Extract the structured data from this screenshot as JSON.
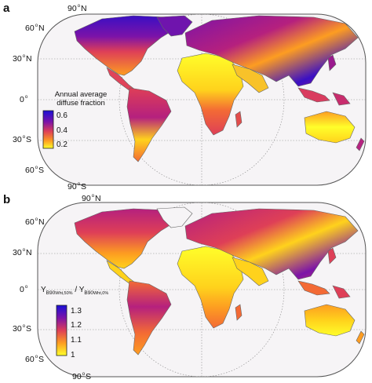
{
  "panels": [
    {
      "letter": "a",
      "latitude_labels": {
        "n90": {
          "value": "90",
          "hemi": "N"
        },
        "n60": {
          "value": "60",
          "hemi": "N"
        },
        "n30": {
          "value": "30",
          "hemi": "N"
        },
        "eq": {
          "value": "0",
          "hemi": ""
        },
        "s30": {
          "value": "30",
          "hemi": "S"
        },
        "s60": {
          "value": "60",
          "hemi": "S"
        },
        "s90": {
          "value": "90",
          "hemi": "S"
        }
      },
      "legend": {
        "title_line1": "Annual average",
        "title_line2": "diffuse fraction",
        "ticks": [
          "0.6",
          "0.4",
          "0.2"
        ],
        "range": [
          0.15,
          0.65
        ]
      }
    },
    {
      "letter": "b",
      "latitude_labels": {
        "n90": {
          "value": "90",
          "hemi": "N"
        },
        "n60": {
          "value": "60",
          "hemi": "N"
        },
        "n30": {
          "value": "30",
          "hemi": "N"
        },
        "eq": {
          "value": "0",
          "hemi": ""
        },
        "s30": {
          "value": "30",
          "hemi": "S"
        },
        "s60": {
          "value": "60",
          "hemi": "S"
        },
        "s90": {
          "value": "90",
          "hemi": "S"
        }
      },
      "legend": {
        "title_y": "Y",
        "title_sub1": "B90",
        "title_sub1b": "Wht,50%",
        "title_slash": " / Y",
        "title_sub2": "B90",
        "title_sub2b": "Wht,0%",
        "ticks": [
          "1.3",
          "1.2",
          "1.1",
          "1"
        ],
        "range": [
          1.0,
          1.35
        ]
      }
    }
  ],
  "colors": {
    "ocean": "#f6f4f6",
    "coast": "#6a6a6a",
    "grid": "#8a8a8a",
    "colormap": [
      "#fffe2a",
      "#ffd21c",
      "#fd9d21",
      "#f36a35",
      "#de3f57",
      "#b5207e",
      "#7c13a8",
      "#3a0fc4",
      "#1a10d6"
    ]
  }
}
